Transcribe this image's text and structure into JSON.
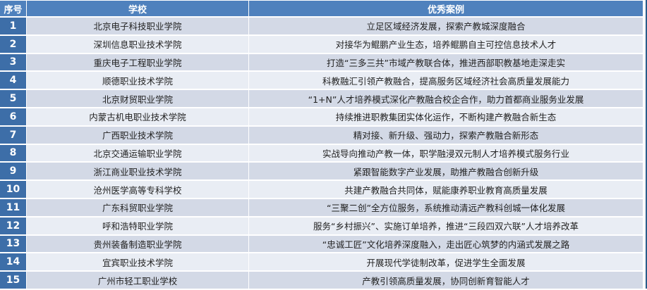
{
  "table": {
    "headers": [
      "序号",
      "学校",
      "优秀案例"
    ],
    "rows": [
      {
        "no": "1",
        "school": "北京电子科技职业学院",
        "case": "立足区域经济发展，探索产教城深度融合"
      },
      {
        "no": "2",
        "school": "深圳信息职业技术学院",
        "case": "对接华为鲲鹏产业生态，培养鲲鹏自主可控信息技术人才"
      },
      {
        "no": "3",
        "school": "重庆电子工程职业学院",
        "case": "打造“三多三共”市域产教联合体，推进西部职教基地走深走实"
      },
      {
        "no": "4",
        "school": "顺德职业技术学院",
        "case": "科教融汇引领产教融合，提高服务区域经济社会高质量发展能力"
      },
      {
        "no": "5",
        "school": "北京财贸职业学院",
        "case": "“1+N”人才培养模式深化产教融合校企合作，助力首都商业服务业发展"
      },
      {
        "no": "6",
        "school": "内蒙古机电职业技术学院",
        "case": "持续推进职教集团实体化运作，不断构建产教融合新生态"
      },
      {
        "no": "7",
        "school": "广西职业技术学院",
        "case": "精对接、新升级、强动力，探索产教融合新形态"
      },
      {
        "no": "8",
        "school": "北京交通运输职业学院",
        "case": "实战导向推动产教一体，职学融浸双元制人才培养模式服务行业"
      },
      {
        "no": "9",
        "school": "浙江商业职业技术学院",
        "case": "紧跟智能数字产业发展，助推产教融合创新升级"
      },
      {
        "no": "10",
        "school": "沧州医学高等专科学校",
        "case": "共建产教融合共同体，赋能康养职业教育高质量发展"
      },
      {
        "no": "11",
        "school": "广东科贸职业学院",
        "case": "“三聚二创”全方位服务，系统推动清远产教科创城一体化发展"
      },
      {
        "no": "12",
        "school": "呼和浩特职业学院",
        "case": "服务“乡村振兴”、实施订单培养，推进“三段四双六联”人才培养改革"
      },
      {
        "no": "13",
        "school": "贵州装备制造职业学院",
        "case": "“忠诚工匠”文化培养深度融入，走出匠心筑梦的内涵式发展之路"
      },
      {
        "no": "14",
        "school": "宜宾职业技术学院",
        "case": "开展现代学徒制改革，促进学生全面发展"
      },
      {
        "no": "15",
        "school": "广州市轻工职业学校",
        "case": "产教引领高质量发展，协同创新育智能人才"
      }
    ]
  },
  "colors": {
    "header": "#4f81bd",
    "number_cell": "#3d6ea8",
    "row_odd": "#d3d9e6",
    "row_even": "#e9edf4"
  }
}
